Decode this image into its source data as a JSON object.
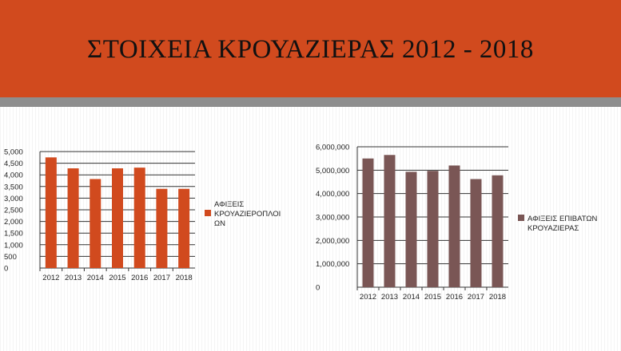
{
  "header": {
    "title": "ΣΤΟΙΧΕΙΑ ΚΡΟΥΑΖΙΕΡΑΣ 2012 - 2018"
  },
  "colors": {
    "header_bg": "#d14a1e",
    "band": "#8e8e8e",
    "series_left": "#d14a1e",
    "series_right": "#7a5655"
  },
  "chart_data": [
    {
      "type": "bar",
      "categories": [
        "2012",
        "2013",
        "2014",
        "2015",
        "2016",
        "2017",
        "2018"
      ],
      "series": [
        {
          "name": "ΑΦΙΞΕΙΣ ΚΡΟΥΑΖΙΕΡΟΠΛΟΙ ΩΝ",
          "values": [
            4750,
            4280,
            3820,
            4280,
            4310,
            3400,
            3400
          ],
          "color": "#d14a1e"
        }
      ],
      "legend_lines": [
        "ΑΦΙΞΕΙΣ",
        "ΚΡΟΥΑΖΙΕΡΟΠΛΟΙ",
        "ΩΝ"
      ],
      "yticks": [
        "0",
        "500",
        "1,000",
        "1,500",
        "2,000",
        "2,500",
        "3,000",
        "3,500",
        "4,000",
        "4,500",
        "5,000"
      ],
      "ylim": [
        0,
        5000
      ],
      "legend_position": "right"
    },
    {
      "type": "bar",
      "categories": [
        "2012",
        "2013",
        "2014",
        "2015",
        "2016",
        "2017",
        "2018"
      ],
      "series": [
        {
          "name": "ΑΦΙΞΕΙΣ ΕΠΙΒΑΤΩΝ ΚΡΟΥΑΖΙΕΡΑΣ",
          "values": [
            5500000,
            5650000,
            4930000,
            4970000,
            5200000,
            4620000,
            4780000
          ],
          "color": "#7a5655"
        }
      ],
      "legend_lines": [
        "ΑΦΙΞΕΙΣ ΕΠΙΒΑΤΩΝ",
        "ΚΡΟΥΑΖΙΕΡΑΣ"
      ],
      "yticks": [
        "0",
        "1,000,000",
        "2,000,000",
        "3,000,000",
        "4,000,000",
        "5,000,000",
        "6,000,000"
      ],
      "ylim": [
        0,
        6000000
      ],
      "legend_position": "right"
    }
  ]
}
